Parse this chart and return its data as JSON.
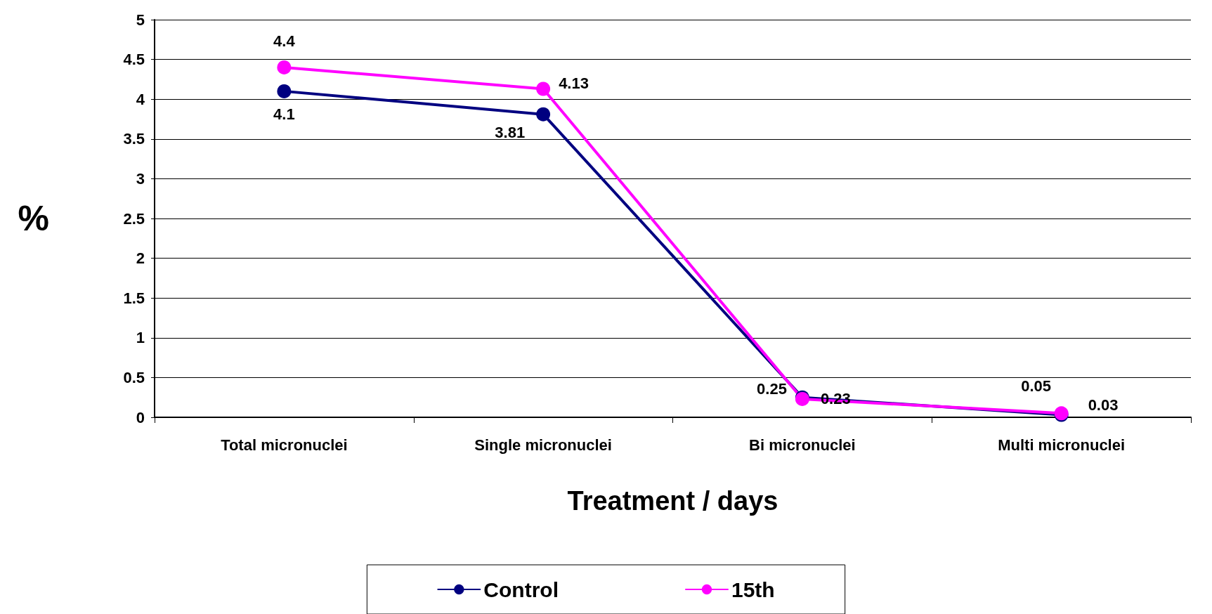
{
  "chart_data": {
    "type": "line",
    "xlabel": "Treatment / days",
    "ylabel": "%",
    "categories": [
      "Total micronuclei",
      "Single micronuclei",
      "Bi micronuclei",
      "Multi micronuclei"
    ],
    "series": [
      {
        "name": "Control",
        "color": "#000080",
        "values": [
          4.1,
          3.81,
          0.25,
          0.03
        ]
      },
      {
        "name": "15th",
        "color": "#ff00ff",
        "values": [
          4.4,
          4.13,
          0.23,
          0.05
        ]
      }
    ],
    "ylim": [
      0,
      5
    ],
    "yticks": [
      0,
      0.5,
      1,
      1.5,
      2,
      2.5,
      3,
      3.5,
      4,
      4.5,
      5
    ],
    "grid": "y",
    "legend": "bottom",
    "marker": "circle",
    "line_style": "solid",
    "data_labels": true
  }
}
